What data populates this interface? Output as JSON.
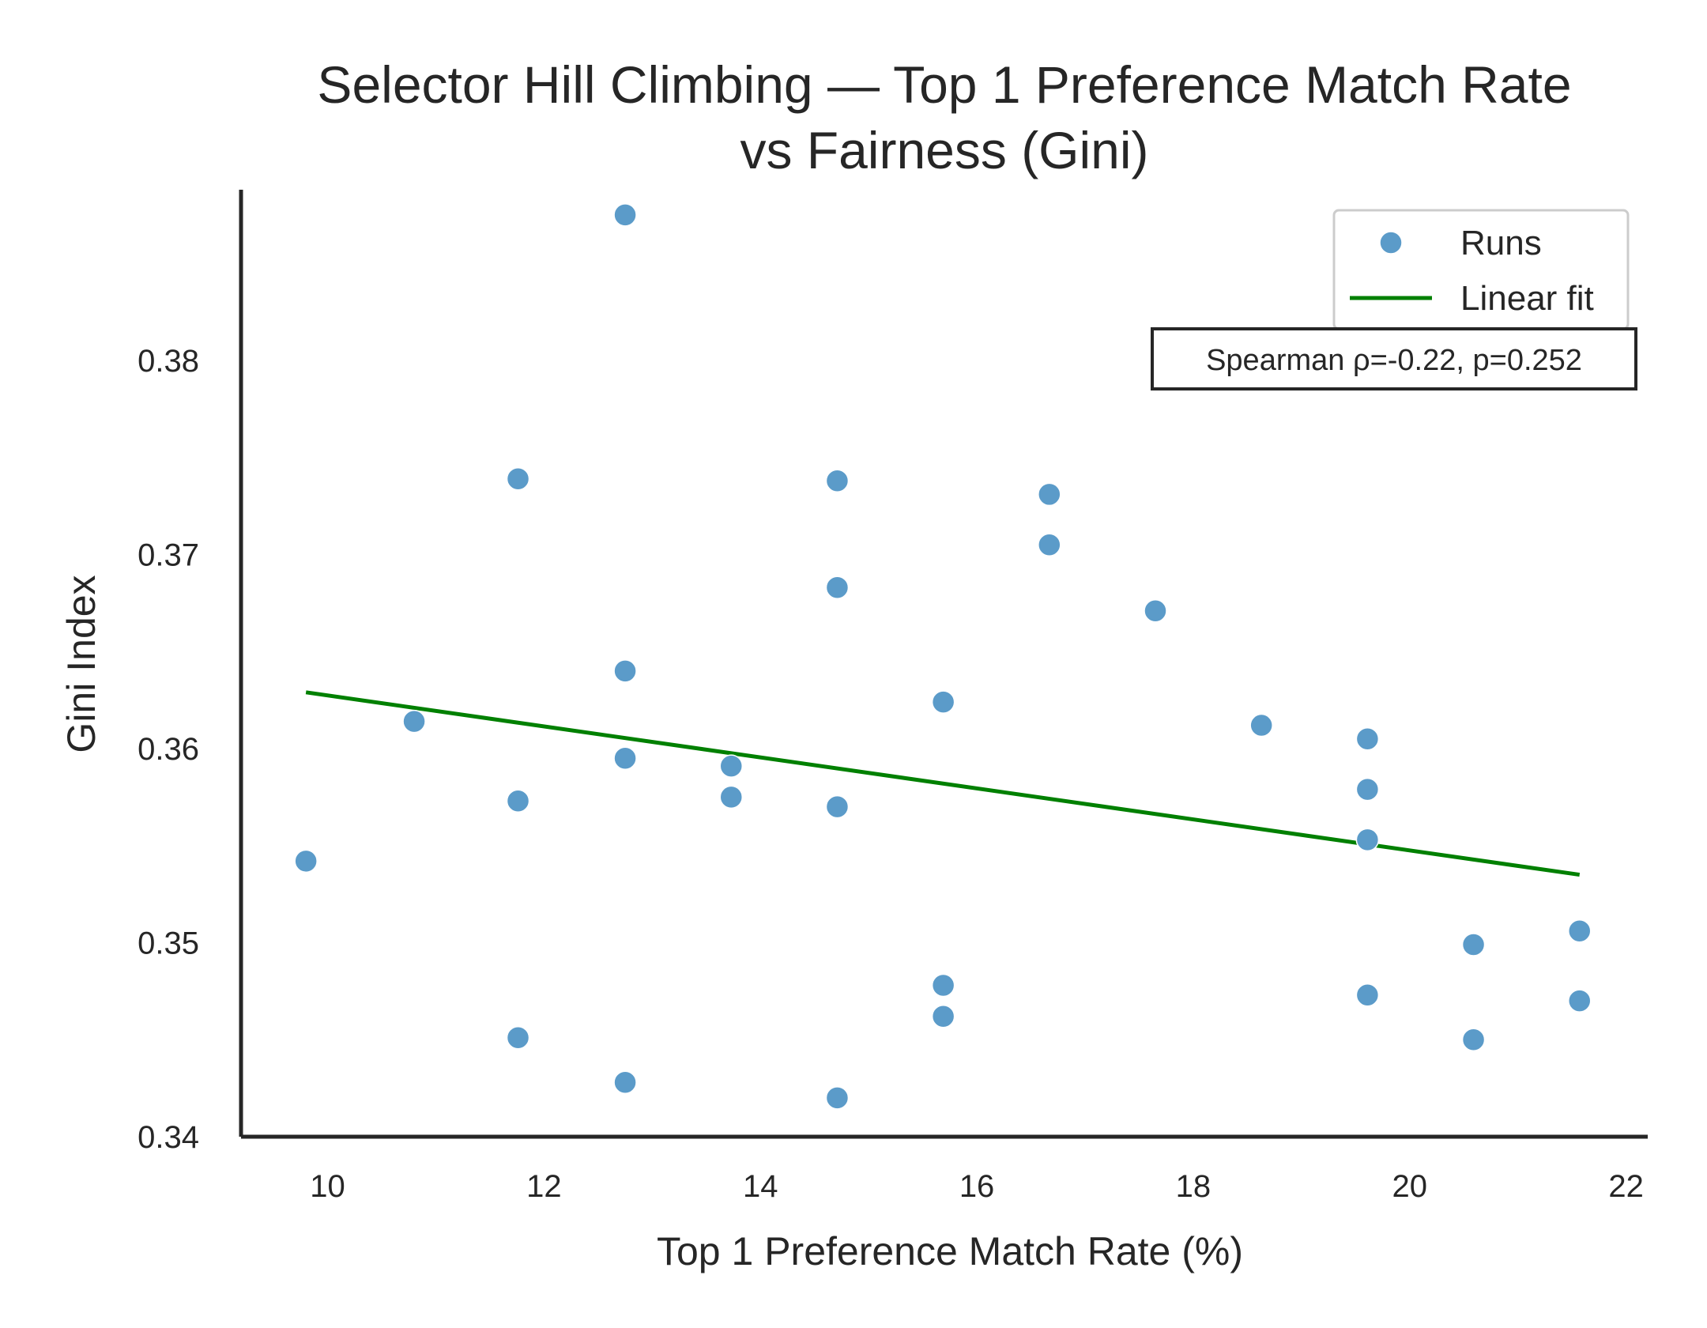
{
  "chart_data": {
    "type": "scatter",
    "title": "Selector Hill Climbing — Top 1 Preference Match Rate\nvs Fairness (Gini)",
    "xlabel": "Top 1 Preference Match Rate (%)",
    "ylabel": "Gini Index",
    "xlim": [
      9.2,
      22.2
    ],
    "ylim": [
      0.34,
      0.3888
    ],
    "xticks": [
      10,
      12,
      14,
      16,
      18,
      20,
      22
    ],
    "yticks": [
      0.34,
      0.35,
      0.36,
      0.37,
      0.38
    ],
    "ytick_labels": [
      "0.34",
      "0.35",
      "0.36",
      "0.37",
      "0.38"
    ],
    "grid": false,
    "legend_position": "top-right",
    "series": [
      {
        "name": "Runs",
        "kind": "scatter",
        "color": "#5b9bc9",
        "points": [
          [
            9.8,
            0.3542
          ],
          [
            10.8,
            0.3614
          ],
          [
            11.76,
            0.3739
          ],
          [
            11.76,
            0.3573
          ],
          [
            11.76,
            0.3451
          ],
          [
            12.75,
            0.3875
          ],
          [
            12.75,
            0.364
          ],
          [
            12.75,
            0.3595
          ],
          [
            12.75,
            0.3428
          ],
          [
            13.73,
            0.3591
          ],
          [
            13.73,
            0.3575
          ],
          [
            14.71,
            0.3738
          ],
          [
            14.71,
            0.3683
          ],
          [
            14.71,
            0.357
          ],
          [
            14.71,
            0.342
          ],
          [
            15.69,
            0.3624
          ],
          [
            15.69,
            0.3478
          ],
          [
            15.69,
            0.3462
          ],
          [
            16.67,
            0.3731
          ],
          [
            16.67,
            0.3705
          ],
          [
            17.65,
            0.3671
          ],
          [
            18.63,
            0.3612
          ],
          [
            19.61,
            0.3605
          ],
          [
            19.61,
            0.3579
          ],
          [
            19.61,
            0.3553
          ],
          [
            19.61,
            0.3473
          ],
          [
            20.59,
            0.3499
          ],
          [
            20.59,
            0.345
          ],
          [
            21.57,
            0.3506
          ],
          [
            21.57,
            0.347
          ]
        ]
      },
      {
        "name": "Linear fit",
        "kind": "line",
        "color": "#008000",
        "points": [
          [
            9.8,
            0.3629
          ],
          [
            21.57,
            0.3535
          ]
        ]
      }
    ],
    "annotation": "Spearman ρ=-0.22, p=0.252"
  }
}
